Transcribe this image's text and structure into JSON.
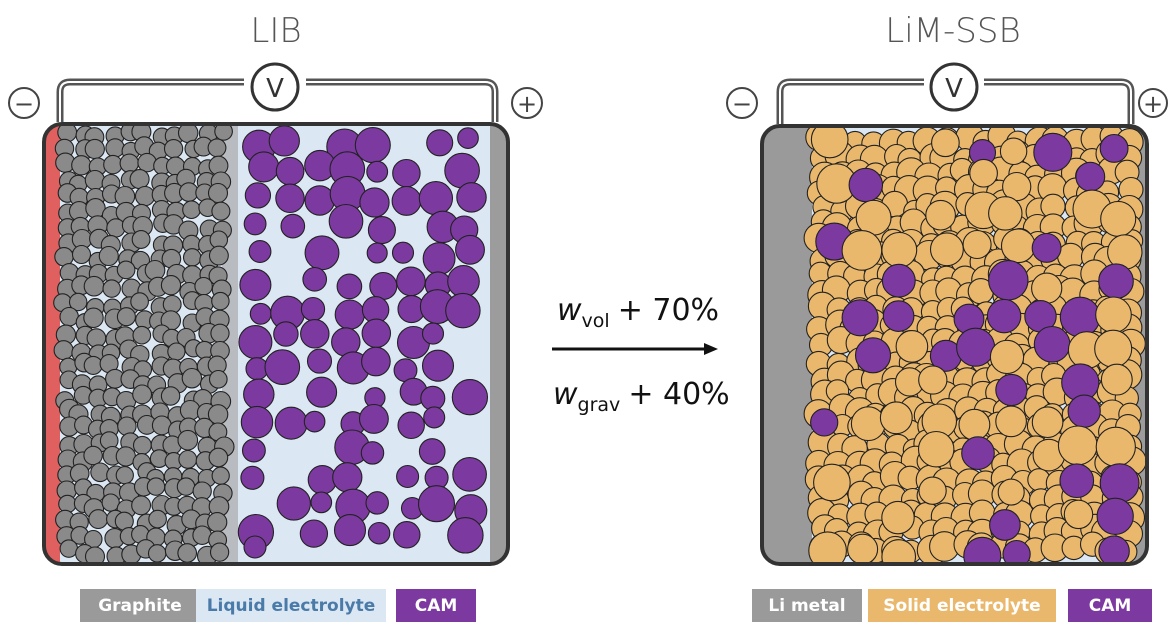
{
  "lib": {
    "title": "LIB",
    "minus": "−",
    "plus": "+",
    "voltmeter": "V",
    "legend": [
      "Graphite",
      "Liquid electrolyte",
      "CAM"
    ]
  },
  "ssb": {
    "title": "LiM-SSB",
    "minus": "−",
    "plus": "+",
    "voltmeter": "V",
    "legend": [
      "Li metal",
      "Solid electrolyte",
      "CAM"
    ]
  },
  "arrow": {
    "top_symbol": "w",
    "top_sub": "vol",
    "top_text": "+ 70%",
    "bottom_symbol": "w",
    "bottom_sub": "grav",
    "bottom_text": "+ 40%"
  },
  "colors": {
    "graphite": "#8a8a8a",
    "liquid_electrolyte": "#dbe8f4",
    "cam": "#7c3aa0",
    "li_metal": "#9a9a9a",
    "solid_electrolyte": "#eab86c",
    "collector_anode": "#e06060",
    "collector": "#9c9c9c"
  }
}
